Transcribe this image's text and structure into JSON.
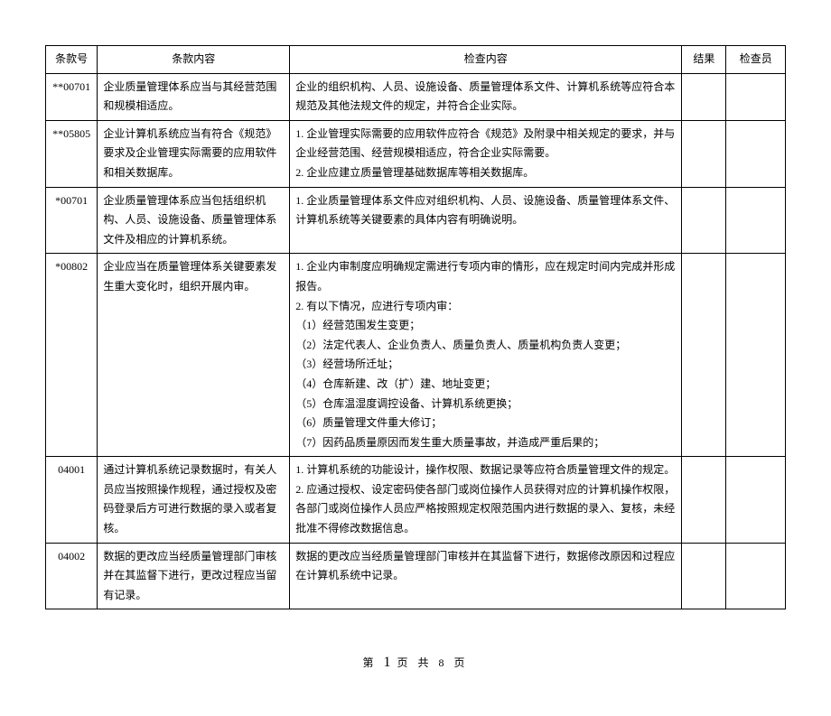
{
  "headers": {
    "clause_no": "条款号",
    "clause_content": "条款内容",
    "check_content": "检查内容",
    "result": "结果",
    "inspector": "检查员"
  },
  "rows": [
    {
      "clause_no": "**00701",
      "clause_content": "企业质量管理体系应当与其经营范围和规模相适应。",
      "check_content": "企业的组织机构、人员、设施设备、质量管理体系文件、计算机系统等应符合本规范及其他法规文件的规定，并符合企业实际。",
      "result": "",
      "inspector": ""
    },
    {
      "clause_no": "**05805",
      "clause_content": "企业计算机系统应当有符合《规范》要求及企业管理实际需要的应用软件和相关数据库。",
      "check_content": "1. 企业管理实际需要的应用软件应符合《规范》及附录中相关规定的要求，并与企业经营范围、经营规模相适应，符合企业实际需要。\n2. 企业应建立质量管理基础数据库等相关数据库。",
      "result": "",
      "inspector": ""
    },
    {
      "clause_no": "*00701",
      "clause_content": "企业质量管理体系应当包括组织机构、人员、设施设备、质量管理体系文件及相应的计算机系统。",
      "check_content": "1. 企业质量管理体系文件应对组织机构、人员、设施设备、质量管理体系文件、计算机系统等关键要素的具体内容有明确说明。",
      "result": "",
      "inspector": ""
    },
    {
      "clause_no": "*00802",
      "clause_content": "企业应当在质量管理体系关键要素发生重大变化时，组织开展内审。",
      "check_content": "1. 企业内审制度应明确规定需进行专项内审的情形，应在规定时间内完成并形成报告。\n2. 有以下情况，应进行专项内审：\n（1）经营范围发生变更；\n（2）法定代表人、企业负责人、质量负责人、质量机构负责人变更；\n（3）经营场所迁址；\n（4）仓库新建、改（扩）建、地址变更；\n（5）仓库温湿度调控设备、计算机系统更换；\n（6）质量管理文件重大修订；\n（7）因药品质量原因而发生重大质量事故，并造成严重后果的；",
      "result": "",
      "inspector": ""
    },
    {
      "clause_no": "04001",
      "clause_content": "通过计算机系统记录数据时，有关人员应当按照操作规程，通过授权及密码登录后方可进行数据的录入或者复核。",
      "check_content": "1. 计算机系统的功能设计，操作权限、数据记录等应符合质量管理文件的规定。\n2. 应通过授权、设定密码使各部门或岗位操作人员获得对应的计算机操作权限，各部门或岗位操作人员应严格按照规定权限范围内进行数据的录入、复核，未经批准不得修改数据信息。",
      "result": "",
      "inspector": ""
    },
    {
      "clause_no": "04002",
      "clause_content": "数据的更改应当经质量管理部门审核并在其监督下进行，更改过程应当留有记录。",
      "check_content": "数据的更改应当经质量管理部门审核并在其监督下进行，数据修改原因和过程应在计算机系统中记录。",
      "result": "",
      "inspector": ""
    }
  ],
  "pager": {
    "prefix": "第",
    "current": "1",
    "middle": "页 共 8 页"
  }
}
